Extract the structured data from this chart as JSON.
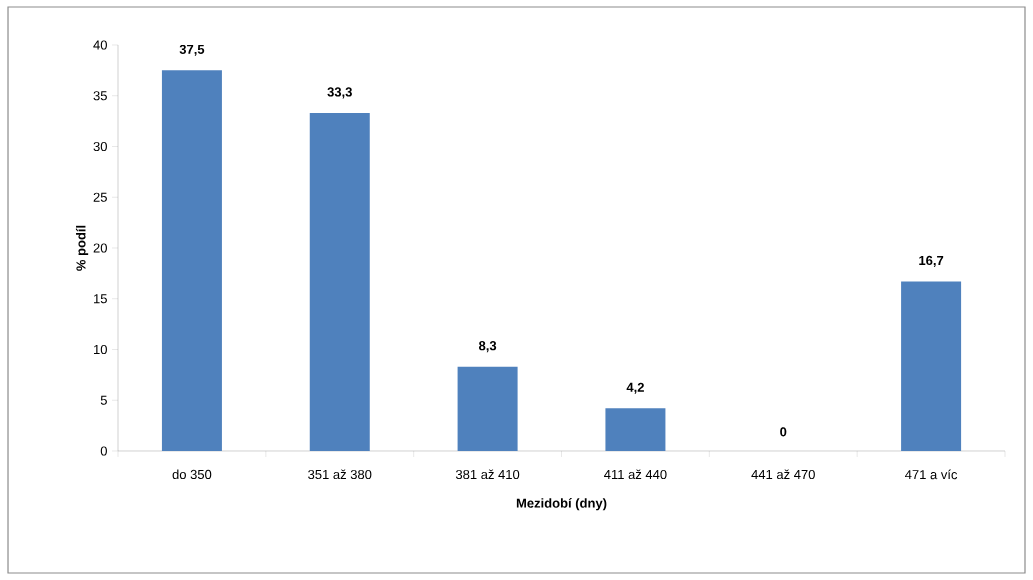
{
  "chart_data": {
    "type": "bar",
    "xlabel": "Mezidobí (dny)",
    "ylabel": "% podíl",
    "categories": [
      "do 350",
      "351 až 380",
      "381 až 410",
      "411 až 440",
      "441 až 470",
      "471 a víc"
    ],
    "values": [
      37.5,
      33.3,
      8.3,
      4.2,
      0,
      16.7
    ],
    "value_labels": [
      "37,5",
      "33,3",
      "8,3",
      "4,2",
      "0",
      "16,7"
    ],
    "color": "#4f81bd",
    "ylim": [
      0,
      40
    ],
    "yticks": [
      0,
      5,
      10,
      15,
      20,
      25,
      30,
      35,
      40
    ]
  }
}
